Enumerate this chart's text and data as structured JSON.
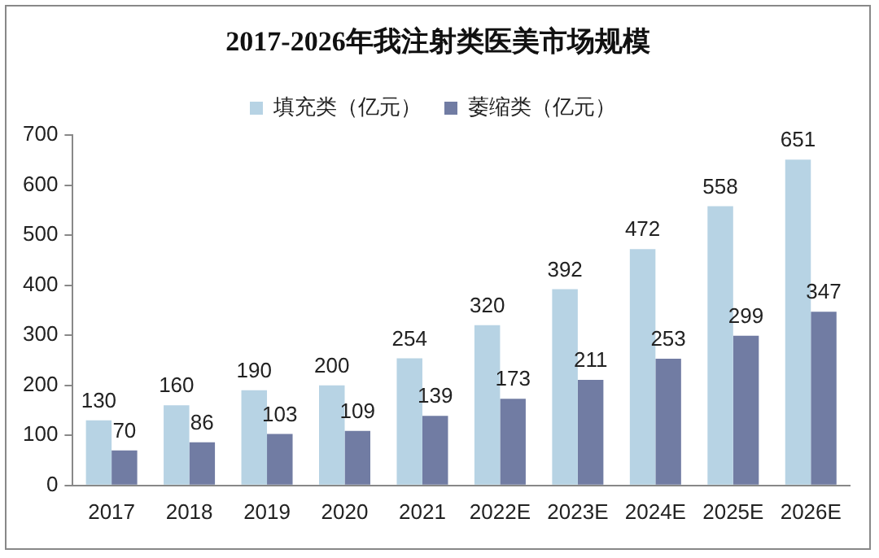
{
  "chart_data": {
    "type": "bar",
    "title": "2017-2026年我注射类医美市场规模",
    "categories": [
      "2017",
      "2018",
      "2019",
      "2020",
      "2021",
      "2022E",
      "2023E",
      "2024E",
      "2025E",
      "2026E"
    ],
    "series": [
      {
        "name": "填充类（亿元）",
        "color": "#b7d3e4",
        "values": [
          130,
          160,
          190,
          200,
          254,
          320,
          392,
          472,
          558,
          651
        ]
      },
      {
        "name": "萎缩类（亿元）",
        "color": "#717ca3",
        "values": [
          70,
          86,
          103,
          109,
          139,
          173,
          211,
          253,
          299,
          347
        ]
      }
    ],
    "ylim": [
      0,
      700
    ],
    "yticks": [
      0,
      100,
      200,
      300,
      400,
      500,
      600,
      700
    ],
    "grid": false,
    "legend": "top",
    "data_labels": true
  }
}
